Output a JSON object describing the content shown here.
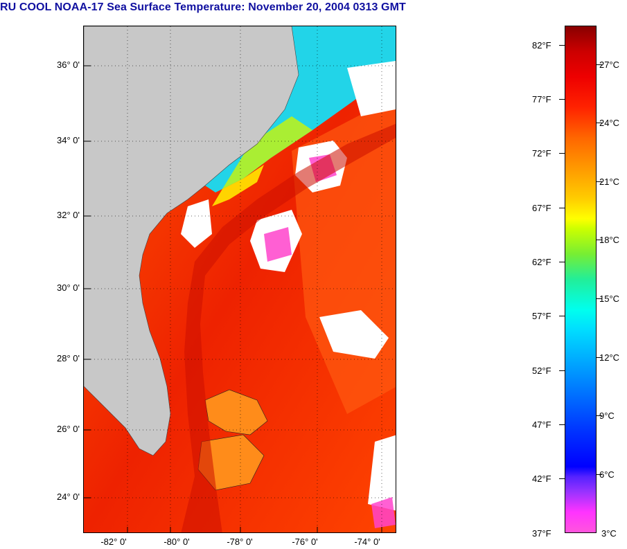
{
  "title": "RU COOL  NOAA-17  Sea Surface Temperature:  November 20, 2004 0313 GMT",
  "map": {
    "lat_labels": [
      "36° 0'",
      "34° 0'",
      "32° 0'",
      "30° 0'",
      "28° 0'",
      "26° 0'",
      "24° 0'"
    ],
    "lon_labels": [
      "-82° 0'",
      "-80° 0'",
      "-78° 0'",
      "-76° 0'",
      "-74° 0'"
    ]
  },
  "colorbar": {
    "fahrenheit_labels": [
      "82°F",
      "77°F",
      "72°F",
      "67°F",
      "62°F",
      "57°F",
      "52°F",
      "47°F",
      "42°F",
      "37°F"
    ],
    "celsius_labels": [
      "27°C",
      "24°C",
      "21°C",
      "18°C",
      "15°C",
      "12°C",
      "9°C",
      "6°C",
      "3°C"
    ]
  },
  "colors": {
    "title": "#1010a0",
    "land": "#c8c8c8",
    "cloud": "#ffffff",
    "warm_sea": "#ee2200",
    "cool_sea": "#00e0e0"
  }
}
